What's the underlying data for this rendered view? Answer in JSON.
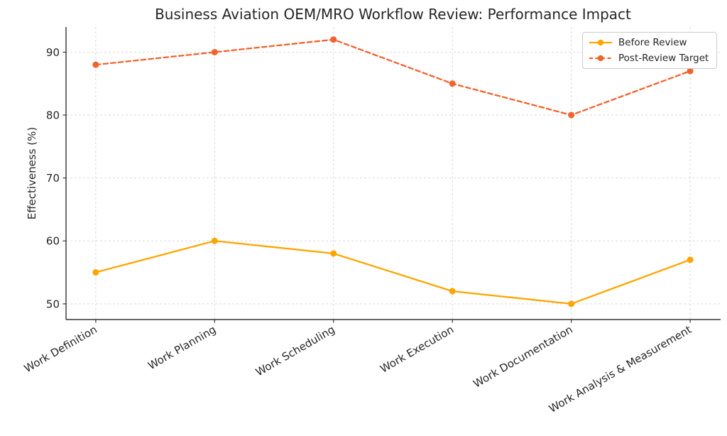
{
  "title": "Business Aviation OEM/MRO Workflow Review: Performance Impact",
  "chart_data": {
    "type": "line",
    "title": "Business Aviation OEM/MRO Workflow Review: Performance Impact",
    "xlabel": "",
    "ylabel": "Effectiveness (%)",
    "categories": [
      "Work Definition",
      "Work Planning",
      "Work Scheduling",
      "Work Execution",
      "Work Documentation",
      "Work Analysis & Measurement"
    ],
    "series": [
      {
        "name": "Before Review",
        "values": [
          55,
          60,
          58,
          52,
          50,
          57
        ],
        "color": "#FFA500",
        "style": "solid"
      },
      {
        "name": "Post-Review Target",
        "values": [
          88,
          90,
          92,
          85,
          80,
          87
        ],
        "color": "#F2622C",
        "style": "dashed"
      }
    ],
    "yticks": [
      50,
      60,
      70,
      80,
      90
    ],
    "ylim": [
      47.5,
      94
    ],
    "grid": true,
    "legend_position": "upper right",
    "x_label_rotation_deg": 30
  },
  "colors": {
    "background": "#ffffff",
    "grid": "#d9d9d9",
    "spine": "#333333",
    "text": "#262626",
    "legend_border": "#cccccc"
  }
}
